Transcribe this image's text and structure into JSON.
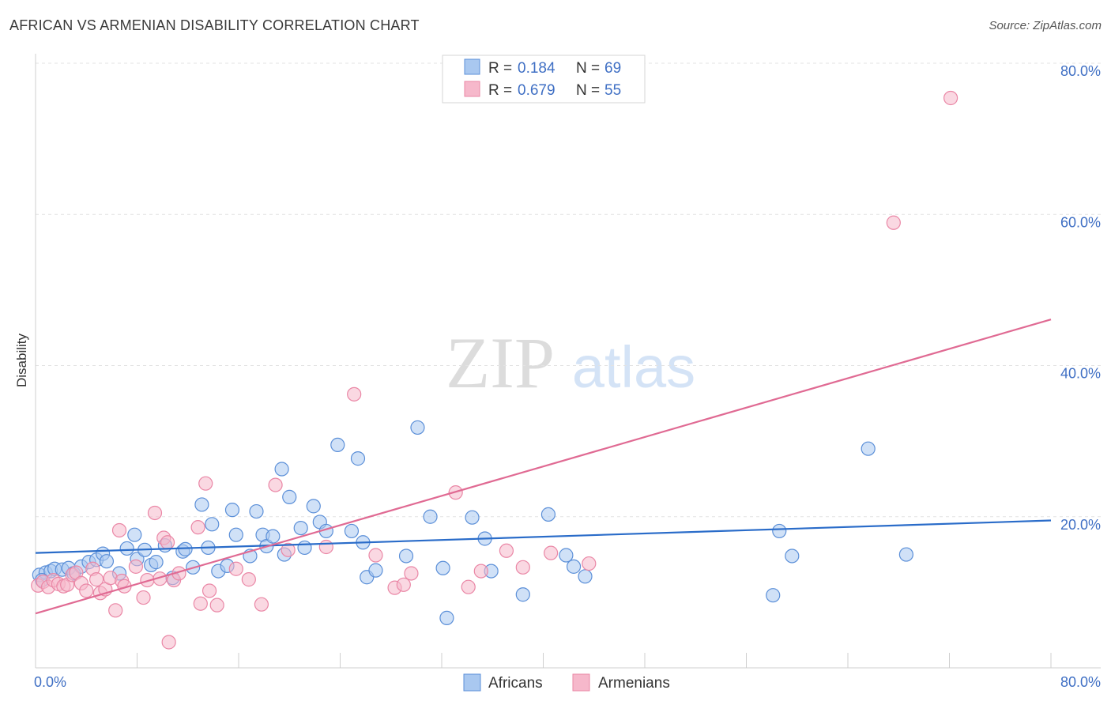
{
  "header": {
    "title": "AFRICAN VS ARMENIAN DISABILITY CORRELATION CHART",
    "source": "Source: ZipAtlas.com"
  },
  "watermark": {
    "zip": "ZIP",
    "atlas": "atlas"
  },
  "legend": {
    "rows": [
      {
        "r_label": "R =",
        "r_value": "0.184",
        "n_label": "N =",
        "n_value": "69",
        "color": "#a9c8f0"
      },
      {
        "r_label": "R =",
        "r_value": "0.679",
        "n_label": "N =",
        "n_value": "55",
        "color": "#f6b8cb"
      }
    ]
  },
  "chart_data": {
    "type": "scatter",
    "title": "AFRICAN VS ARMENIAN DISABILITY CORRELATION CHART",
    "xlabel": "",
    "ylabel": "Disability",
    "xlim": [
      0,
      80
    ],
    "ylim": [
      0,
      80
    ],
    "x_tick_labels": [
      "0.0%",
      "80.0%"
    ],
    "y_ticks": [
      20,
      40,
      60,
      80
    ],
    "y_tick_labels": [
      "20.0%",
      "40.0%",
      "60.0%",
      "80.0%"
    ],
    "grid": true,
    "legend_position": "bottom",
    "series": [
      {
        "name": "Africans",
        "color": "#5b8fd8",
        "fill": "#a9c8f0",
        "trend": {
          "x": [
            0,
            80
          ],
          "y": [
            15.2,
            19.5
          ],
          "color": "#2a6cc9"
        },
        "points": [
          [
            0.3,
            12.3
          ],
          [
            0.8,
            12.6
          ],
          [
            1.2,
            12.8
          ],
          [
            1.5,
            13.1
          ],
          [
            2.1,
            13.0
          ],
          [
            2.6,
            13.2
          ],
          [
            3.0,
            12.5
          ],
          [
            3.6,
            13.4
          ],
          [
            4.2,
            14.0
          ],
          [
            4.8,
            14.3
          ],
          [
            5.3,
            15.1
          ],
          [
            5.6,
            14.1
          ],
          [
            6.6,
            12.5
          ],
          [
            7.2,
            15.8
          ],
          [
            7.8,
            17.6
          ],
          [
            8.0,
            14.4
          ],
          [
            8.6,
            15.6
          ],
          [
            9.1,
            13.6
          ],
          [
            9.5,
            14.0
          ],
          [
            10.2,
            16.2
          ],
          [
            10.8,
            11.9
          ],
          [
            11.6,
            15.4
          ],
          [
            11.8,
            15.7
          ],
          [
            12.4,
            13.3
          ],
          [
            13.1,
            21.6
          ],
          [
            13.6,
            15.9
          ],
          [
            13.9,
            19.0
          ],
          [
            14.4,
            12.8
          ],
          [
            15.1,
            13.5
          ],
          [
            15.5,
            20.9
          ],
          [
            15.8,
            17.6
          ],
          [
            16.9,
            14.8
          ],
          [
            17.4,
            20.7
          ],
          [
            17.9,
            17.6
          ],
          [
            18.2,
            16.1
          ],
          [
            18.7,
            17.4
          ],
          [
            19.4,
            26.3
          ],
          [
            19.6,
            15.0
          ],
          [
            20.0,
            22.6
          ],
          [
            20.9,
            18.5
          ],
          [
            21.2,
            15.9
          ],
          [
            21.9,
            21.4
          ],
          [
            22.4,
            19.3
          ],
          [
            22.9,
            18.1
          ],
          [
            23.8,
            29.5
          ],
          [
            24.9,
            18.1
          ],
          [
            25.4,
            27.7
          ],
          [
            25.8,
            16.6
          ],
          [
            26.1,
            12.0
          ],
          [
            26.8,
            12.9
          ],
          [
            29.2,
            14.8
          ],
          [
            30.1,
            31.8
          ],
          [
            31.1,
            20.0
          ],
          [
            32.1,
            13.2
          ],
          [
            32.4,
            6.6
          ],
          [
            34.4,
            19.9
          ],
          [
            35.4,
            17.1
          ],
          [
            35.9,
            12.8
          ],
          [
            38.4,
            9.7
          ],
          [
            40.4,
            20.3
          ],
          [
            41.8,
            14.9
          ],
          [
            42.4,
            13.4
          ],
          [
            43.3,
            12.1
          ],
          [
            58.1,
            9.6
          ],
          [
            58.6,
            18.1
          ],
          [
            59.6,
            14.8
          ],
          [
            65.6,
            29.0
          ],
          [
            68.6,
            15.0
          ],
          [
            0.5,
            11.6
          ]
        ]
      },
      {
        "name": "Armenians",
        "color": "#ea87a6",
        "fill": "#f6b8cb",
        "trend": {
          "x": [
            0,
            80
          ],
          "y": [
            7.2,
            46.1
          ],
          "color": "#e06a93"
        },
        "points": [
          [
            0.2,
            10.9
          ],
          [
            0.6,
            11.4
          ],
          [
            1.0,
            10.7
          ],
          [
            1.4,
            11.6
          ],
          [
            1.8,
            11.1
          ],
          [
            2.2,
            10.8
          ],
          [
            2.5,
            11.0
          ],
          [
            2.9,
            12.3
          ],
          [
            3.2,
            12.6
          ],
          [
            3.6,
            11.2
          ],
          [
            4.0,
            10.2
          ],
          [
            4.5,
            13.1
          ],
          [
            4.8,
            11.7
          ],
          [
            5.1,
            9.9
          ],
          [
            5.5,
            10.4
          ],
          [
            5.9,
            11.9
          ],
          [
            6.3,
            7.6
          ],
          [
            6.6,
            18.2
          ],
          [
            6.8,
            11.5
          ],
          [
            7.0,
            10.8
          ],
          [
            7.9,
            13.4
          ],
          [
            8.5,
            9.3
          ],
          [
            8.8,
            11.6
          ],
          [
            9.4,
            20.5
          ],
          [
            9.8,
            11.8
          ],
          [
            10.1,
            17.2
          ],
          [
            10.4,
            16.6
          ],
          [
            10.5,
            3.4
          ],
          [
            10.9,
            11.6
          ],
          [
            11.3,
            12.5
          ],
          [
            12.8,
            18.6
          ],
          [
            13.0,
            8.5
          ],
          [
            13.4,
            24.4
          ],
          [
            13.7,
            10.2
          ],
          [
            14.3,
            8.3
          ],
          [
            15.8,
            13.1
          ],
          [
            16.8,
            11.7
          ],
          [
            17.8,
            8.4
          ],
          [
            18.9,
            24.2
          ],
          [
            19.9,
            15.6
          ],
          [
            22.9,
            16.0
          ],
          [
            25.1,
            36.2
          ],
          [
            26.8,
            14.9
          ],
          [
            28.3,
            10.6
          ],
          [
            29.0,
            11.0
          ],
          [
            29.6,
            12.5
          ],
          [
            33.1,
            23.2
          ],
          [
            34.1,
            10.7
          ],
          [
            35.1,
            12.8
          ],
          [
            37.1,
            15.5
          ],
          [
            38.4,
            13.3
          ],
          [
            40.6,
            15.2
          ],
          [
            43.6,
            13.8
          ],
          [
            67.6,
            58.9
          ],
          [
            72.1,
            75.4
          ]
        ]
      }
    ]
  }
}
